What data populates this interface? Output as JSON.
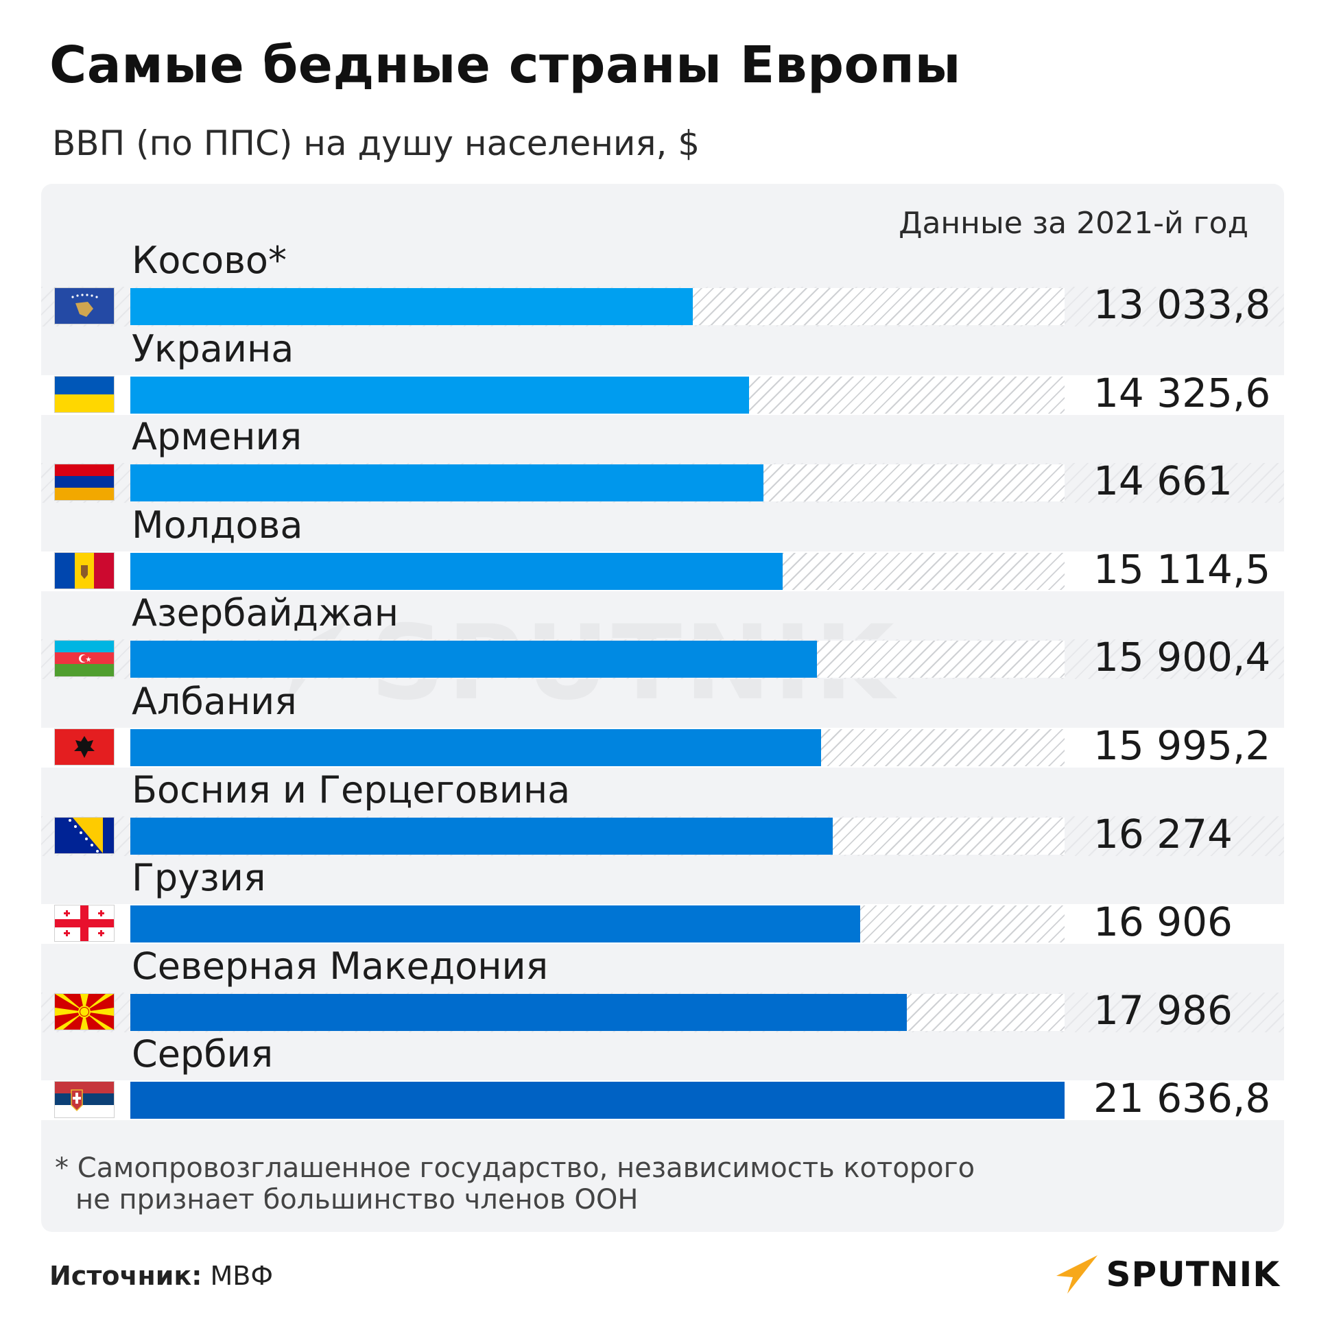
{
  "title": "Самые бедные страны Европы",
  "subtitle": "ВВП (по ППС) на душу населения, $",
  "year_note": "Данные за 2021-й год",
  "chart_data": {
    "type": "bar",
    "orientation": "horizontal",
    "title": "Самые бедные страны Европы",
    "subtitle": "ВВП (по ППС) на душу населения, $",
    "categories": [
      "Косово*",
      "Украина",
      "Армения",
      "Молдова",
      "Азербайджан",
      "Албания",
      "Босния и Герцеговина",
      "Грузия",
      "Северная Македония",
      "Сербия"
    ],
    "values": [
      13033.8,
      14325.6,
      14661,
      15114.5,
      15900.4,
      15995.2,
      16274,
      16906,
      17986,
      21636.8
    ],
    "value_labels": [
      "13 033,8",
      "14 325,6",
      "14 661",
      "15 114,5",
      "15 900,4",
      "15 995,2",
      "16 274",
      "16 906",
      "17 986",
      "21 636,8"
    ],
    "xlim": [
      0,
      21636.8
    ],
    "bar_colors": [
      "#00a0f0",
      "#009cef",
      "#0097ec",
      "#0091e9",
      "#008ae3",
      "#0084df",
      "#007dda",
      "#0075d4",
      "#006ccd",
      "#0062c4"
    ],
    "grid": false
  },
  "flags": [
    "kosovo-flag-icon",
    "ukraine-flag-icon",
    "armenia-flag-icon",
    "moldova-flag-icon",
    "azerbaijan-flag-icon",
    "albania-flag-icon",
    "bosnia-flag-icon",
    "georgia-flag-icon",
    "north-macedonia-flag-icon",
    "serbia-flag-icon"
  ],
  "footnote": {
    "line1": "* Самопровозглашенное государство, независимость которого",
    "line2": "не признает большинство членов ООН"
  },
  "source": {
    "label": "Источник:",
    "value": "МВФ"
  },
  "brand": "SPUTNIK",
  "watermark": "SPUTNIK",
  "colors": {
    "accent": "#f7a81b",
    "panel": "#f2f3f5"
  }
}
